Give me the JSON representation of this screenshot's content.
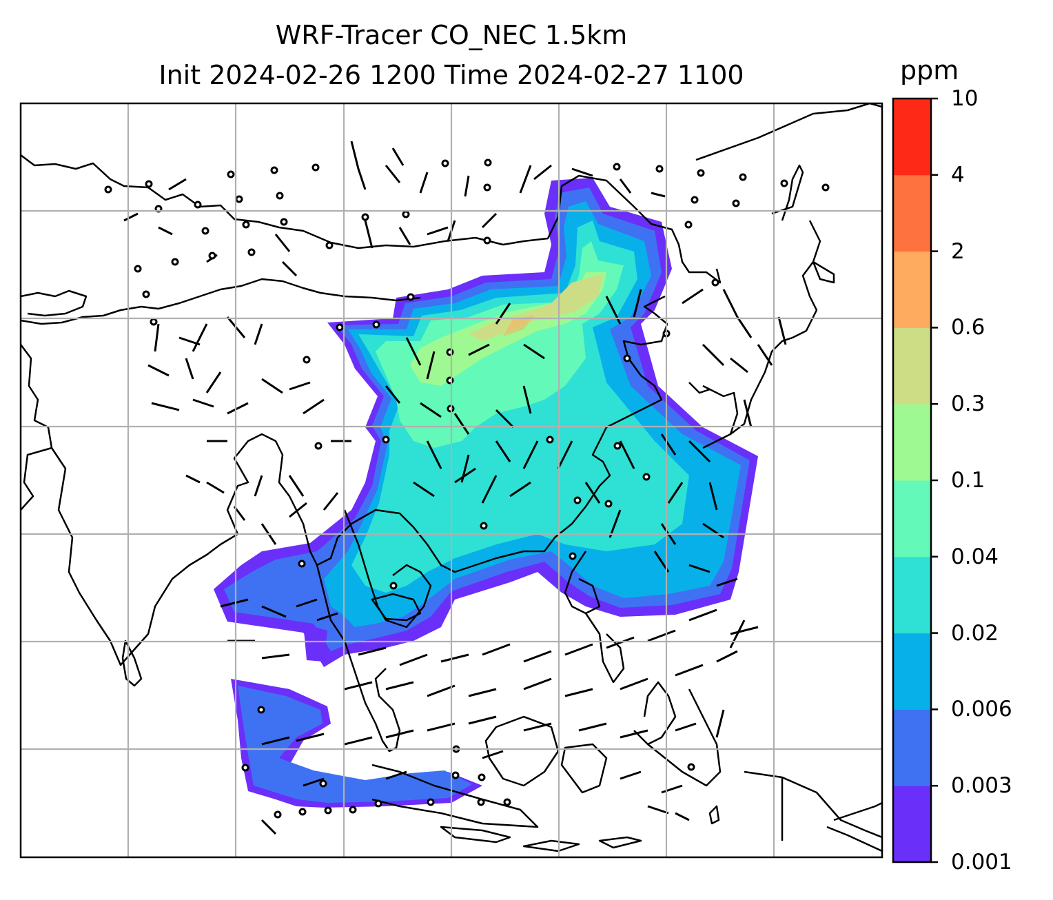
{
  "title_line1": "WRF-Tracer CO_NEC 1.5km",
  "title_line2": "Init 2024-02-26 1200 Time 2024-02-27 1100",
  "colorbar": {
    "unit": "ppm",
    "levels": [
      "0.001",
      "0.003",
      "0.006",
      "0.02",
      "0.04",
      "0.1",
      "0.3",
      "0.6",
      "2",
      "4",
      "10"
    ],
    "colors": [
      "#6b2ffa",
      "#3f72f2",
      "#08b0e9",
      "#2fe0d4",
      "#62f9b9",
      "#9ef992",
      "#cddd86",
      "#feab5f",
      "#fe7240",
      "#fe2a17"
    ]
  }
}
